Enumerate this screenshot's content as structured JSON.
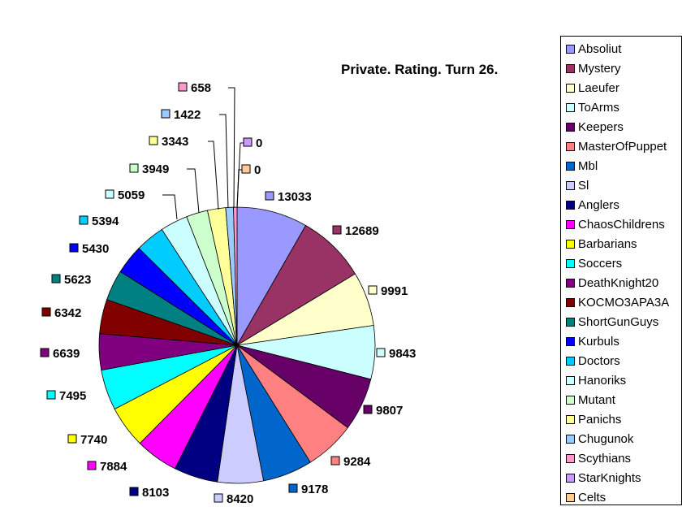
{
  "chart_data": {
    "type": "pie",
    "title": "Private. Rating. Turn 26.",
    "legend_position": "right",
    "slices": [
      {
        "name": "Absoliut",
        "value": 13033,
        "color": "#9999FF"
      },
      {
        "name": "Mystery",
        "value": 12689,
        "color": "#993366"
      },
      {
        "name": "Laeufer",
        "value": 9991,
        "color": "#FFFFCC"
      },
      {
        "name": "ToArms",
        "value": 9843,
        "color": "#CCFFFF"
      },
      {
        "name": "Keepers",
        "value": 9807,
        "color": "#660066"
      },
      {
        "name": "MasterOfPuppet",
        "value": 9284,
        "color": "#FF8080"
      },
      {
        "name": "Mbl",
        "value": 9178,
        "color": "#0066CC"
      },
      {
        "name": "Sl",
        "value": 8420,
        "color": "#CCCCFF"
      },
      {
        "name": "Anglers",
        "value": 8103,
        "color": "#000080"
      },
      {
        "name": "ChaosChildrens",
        "value": 7884,
        "color": "#FF00FF"
      },
      {
        "name": "Barbarians",
        "value": 7740,
        "color": "#FFFF00"
      },
      {
        "name": "Soccers",
        "value": 7495,
        "color": "#00FFFF"
      },
      {
        "name": "DeathKnight20",
        "value": 6639,
        "color": "#800080"
      },
      {
        "name": "KOCMO3APA3A",
        "value": 6342,
        "color": "#800000"
      },
      {
        "name": "ShortGunGuys",
        "value": 5623,
        "color": "#008080"
      },
      {
        "name": "Kurbuls",
        "value": 5430,
        "color": "#0000FF"
      },
      {
        "name": "Doctors",
        "value": 5394,
        "color": "#00CCFF"
      },
      {
        "name": "Hanoriks",
        "value": 5059,
        "color": "#CCFFFF"
      },
      {
        "name": "Mutant",
        "value": 3949,
        "color": "#CCFFCC"
      },
      {
        "name": "Panichs",
        "value": 3343,
        "color": "#FFFF99"
      },
      {
        "name": "Chugunok",
        "value": 1422,
        "color": "#99CCFF"
      },
      {
        "name": "Scythians",
        "value": 658,
        "color": "#FF99CC"
      },
      {
        "name": "StarKnights",
        "value": 0,
        "color": "#CC99FF"
      },
      {
        "name": "Celts",
        "value": 0,
        "color": "#FFCC99"
      }
    ]
  }
}
